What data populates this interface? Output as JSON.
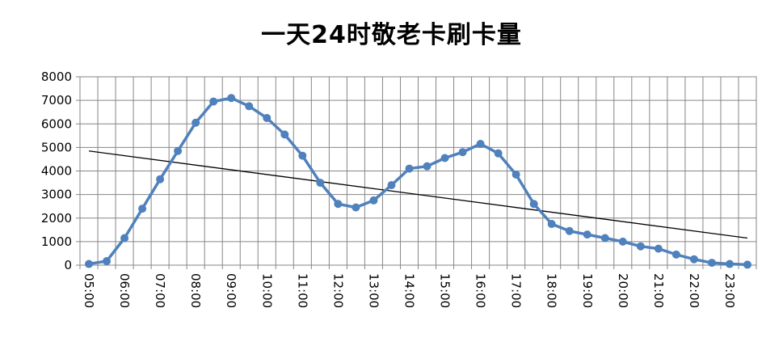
{
  "chart_data": {
    "type": "line",
    "title": "一天24时敬老卡刷卡量",
    "xlabel": "",
    "ylabel": "",
    "ylim": [
      0,
      8000
    ],
    "yticks": [
      0,
      1000,
      2000,
      3000,
      4000,
      5000,
      6000,
      7000,
      8000
    ],
    "x_tick_labels": [
      "05:00",
      "06:00",
      "07:00",
      "08:00",
      "09:00",
      "10:00",
      "11:00",
      "12:00",
      "13:00",
      "14:00",
      "15:00",
      "16:00",
      "17:00",
      "18:00",
      "19:00",
      "20:00",
      "21:00",
      "22:00",
      "23:00"
    ],
    "grid": true,
    "legend": "none",
    "series": [
      {
        "color": "#4F81BD",
        "x": [
          "05:00",
          "05:30",
          "06:00",
          "06:30",
          "07:00",
          "07:30",
          "08:00",
          "08:30",
          "09:00",
          "09:30",
          "10:00",
          "10:30",
          "11:00",
          "11:30",
          "12:00",
          "12:30",
          "13:00",
          "13:30",
          "14:00",
          "14:30",
          "15:00",
          "15:30",
          "16:00",
          "16:30",
          "17:00",
          "17:30",
          "18:00",
          "18:30",
          "19:00",
          "19:30",
          "20:00",
          "20:30",
          "21:00",
          "21:30",
          "22:00",
          "22:30",
          "23:00",
          "23:30"
        ],
        "values": [
          50,
          170,
          1150,
          2400,
          3650,
          4850,
          6050,
          6950,
          7100,
          6750,
          6250,
          5550,
          4650,
          3500,
          2600,
          2450,
          2750,
          3400,
          4100,
          4200,
          4550,
          4800,
          5150,
          4750,
          3850,
          2600,
          1750,
          1450,
          1300,
          1150,
          1000,
          800,
          700,
          450,
          250,
          100,
          50,
          20
        ]
      }
    ],
    "trendline": {
      "type": "linear",
      "color": "#000000",
      "start_value": 4850,
      "end_value": 1150
    }
  }
}
